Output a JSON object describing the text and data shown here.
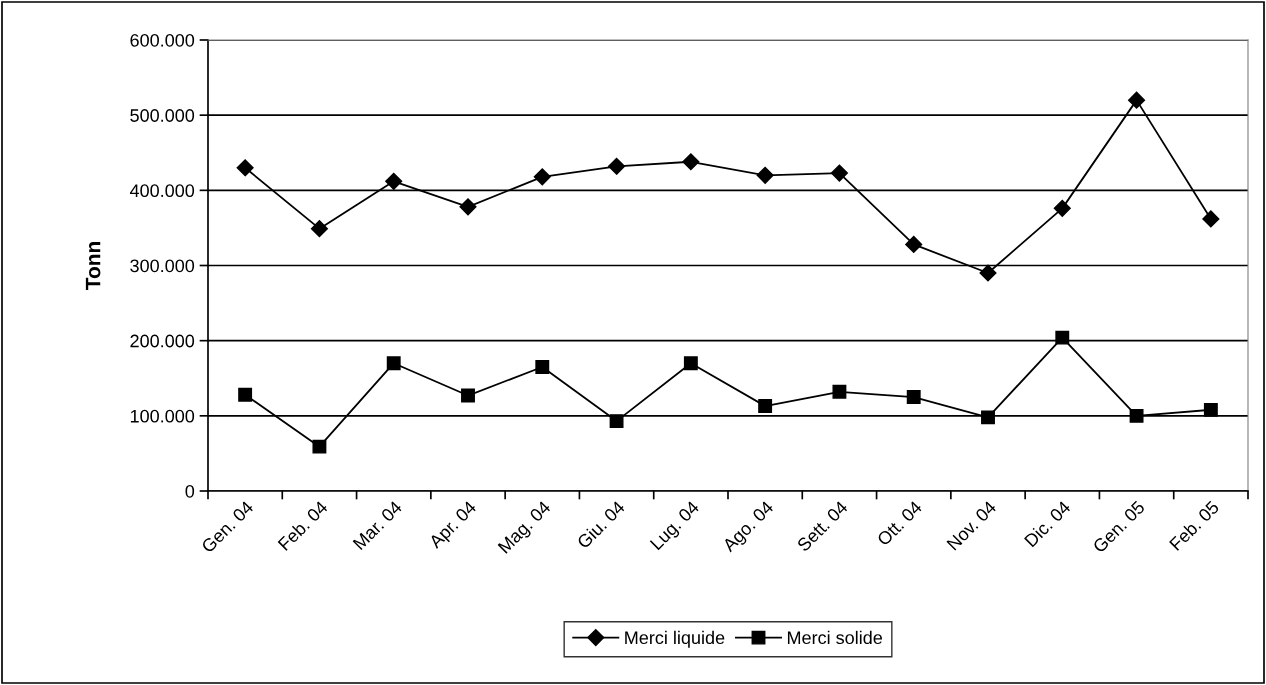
{
  "chart_data": {
    "type": "line",
    "ylabel": "Tonn",
    "categories": [
      "Gen. 04",
      "Feb. 04",
      "Mar. 04",
      "Apr. 04",
      "Mag. 04",
      "Giu. 04",
      "Lug. 04",
      "Ago. 04",
      "Sett. 04",
      "Ott. 04",
      "Nov. 04",
      "Dic. 04",
      "Gen. 05",
      "Feb. 05"
    ],
    "series": [
      {
        "name": "Merci liquide",
        "color": "#000000",
        "marker": "diamond",
        "values": [
          430000,
          349000,
          412000,
          378000,
          418000,
          432000,
          438000,
          420000,
          423000,
          328000,
          290000,
          376000,
          520000,
          362000
        ]
      },
      {
        "name": "Merci solide",
        "color": "#000000",
        "marker": "square",
        "values": [
          128000,
          59000,
          170000,
          127000,
          165000,
          93000,
          170000,
          113000,
          132000,
          125000,
          98000,
          204000,
          100000,
          108000
        ]
      }
    ],
    "ylim": [
      0,
      600000
    ],
    "yticks": [
      0,
      {
        "value": 100000,
        "label": "100.000"
      },
      {
        "value": 200000,
        "label": "200.000"
      },
      {
        "value": 300000,
        "label": "300.000"
      },
      {
        "value": 400000,
        "label": "400.000"
      },
      {
        "value": 500000,
        "label": "500.000"
      },
      {
        "value": 600000,
        "label": "600.000"
      }
    ],
    "grid": "y",
    "legend": "bottom",
    "line_style": "solid"
  }
}
